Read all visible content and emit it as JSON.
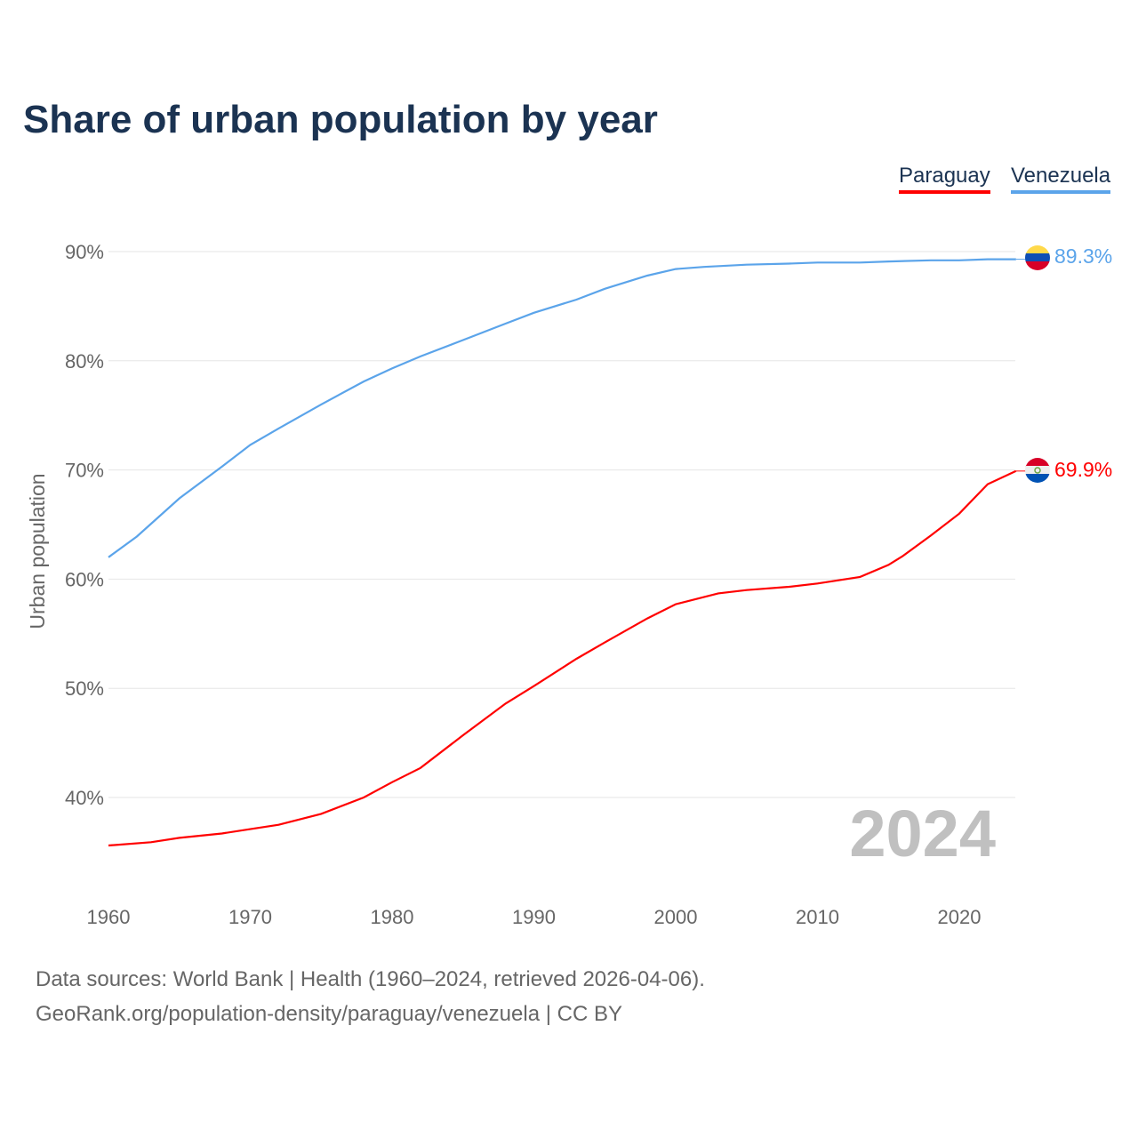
{
  "chart_data": {
    "type": "line",
    "title": "Share of urban population by year",
    "xlabel": "",
    "ylabel": "Urban population",
    "xlim": [
      1960,
      2024
    ],
    "ylim": [
      31,
      95
    ],
    "yticks": [
      40,
      50,
      60,
      70,
      80,
      90
    ],
    "ytick_labels": [
      "40%",
      "50%",
      "60%",
      "70%",
      "80%",
      "90%"
    ],
    "xticks": [
      1960,
      1970,
      1980,
      1990,
      2000,
      2010,
      2020
    ],
    "xtick_labels": [
      "1960",
      "1970",
      "1980",
      "1990",
      "2000",
      "2010",
      "2020"
    ],
    "grid": true,
    "legend_placement": "top-right",
    "year_watermark": "2024",
    "series": [
      {
        "name": "Paraguay",
        "color": "#ff0000",
        "end_label": "69.9%",
        "x": [
          1960,
          1963,
          1965,
          1968,
          1970,
          1972,
          1975,
          1978,
          1980,
          1982,
          1985,
          1988,
          1990,
          1993,
          1995,
          1998,
          2000,
          2003,
          2005,
          2008,
          2010,
          2013,
          2015,
          2016,
          2018,
          2020,
          2022,
          2024
        ],
        "y": [
          35.6,
          35.9,
          36.3,
          36.7,
          37.1,
          37.5,
          38.5,
          40.0,
          41.4,
          42.7,
          45.7,
          48.6,
          50.2,
          52.7,
          54.2,
          56.4,
          57.7,
          58.7,
          59.0,
          59.3,
          59.6,
          60.2,
          61.3,
          62.1,
          64.0,
          66.0,
          68.7,
          69.9
        ]
      },
      {
        "name": "Venezuela",
        "color": "#5ba4ea",
        "end_label": "89.3%",
        "x": [
          1960,
          1962,
          1965,
          1968,
          1970,
          1972,
          1975,
          1978,
          1980,
          1982,
          1985,
          1988,
          1990,
          1993,
          1995,
          1998,
          2000,
          2002,
          2005,
          2008,
          2010,
          2013,
          2015,
          2018,
          2020,
          2022,
          2024
        ],
        "y": [
          62.0,
          63.9,
          67.4,
          70.3,
          72.3,
          73.8,
          76.0,
          78.1,
          79.3,
          80.4,
          81.9,
          83.4,
          84.4,
          85.6,
          86.6,
          87.8,
          88.4,
          88.6,
          88.8,
          88.9,
          89.0,
          89.0,
          89.1,
          89.2,
          89.2,
          89.3,
          89.3
        ]
      }
    ]
  },
  "footer": {
    "line1": "Data sources: World Bank | Health (1960–2024, retrieved 2026-04-06).",
    "line2": "GeoRank.org/population-density/paraguay/venezuela | CC BY"
  }
}
